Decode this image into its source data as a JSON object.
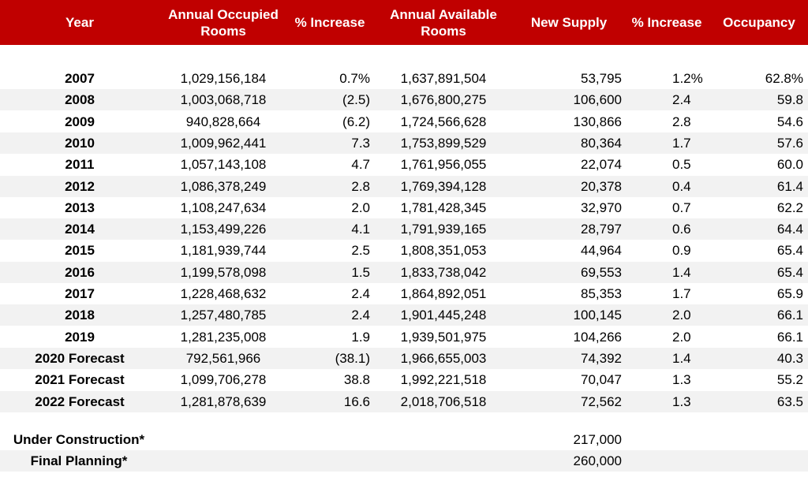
{
  "header": {
    "year": "Year",
    "annual_occupied": "Annual Occupied Rooms",
    "pct_increase_1": "% Increase",
    "annual_available": "Annual Available Rooms",
    "new_supply": "New Supply",
    "pct_increase_2": "% Increase",
    "occupancy": "Occupancy"
  },
  "rows": [
    {
      "year": "2007",
      "occupied": "1,029,156,184",
      "occ_pct": "0.7%",
      "available": "1,637,891,504",
      "supply": "53,795",
      "sup_pct": "1.2%",
      "occupancy": "62.8%"
    },
    {
      "year": "2008",
      "occupied": "1,003,068,718",
      "occ_pct": "(2.5)",
      "available": "1,676,800,275",
      "supply": "106,600",
      "sup_pct": "2.4",
      "occupancy": "59.8"
    },
    {
      "year": "2009",
      "occupied": "940,828,664",
      "occ_pct": "(6.2)",
      "available": "1,724,566,628",
      "supply": "130,866",
      "sup_pct": "2.8",
      "occupancy": "54.6"
    },
    {
      "year": "2010",
      "occupied": "1,009,962,441",
      "occ_pct": "7.3",
      "available": "1,753,899,529",
      "supply": "80,364",
      "sup_pct": "1.7",
      "occupancy": "57.6"
    },
    {
      "year": "2011",
      "occupied": "1,057,143,108",
      "occ_pct": "4.7",
      "available": "1,761,956,055",
      "supply": "22,074",
      "sup_pct": "0.5",
      "occupancy": "60.0"
    },
    {
      "year": "2012",
      "occupied": "1,086,378,249",
      "occ_pct": "2.8",
      "available": "1,769,394,128",
      "supply": "20,378",
      "sup_pct": "0.4",
      "occupancy": "61.4"
    },
    {
      "year": "2013",
      "occupied": "1,108,247,634",
      "occ_pct": "2.0",
      "available": "1,781,428,345",
      "supply": "32,970",
      "sup_pct": "0.7",
      "occupancy": "62.2"
    },
    {
      "year": "2014",
      "occupied": "1,153,499,226",
      "occ_pct": "4.1",
      "available": "1,791,939,165",
      "supply": "28,797",
      "sup_pct": "0.6",
      "occupancy": "64.4"
    },
    {
      "year": "2015",
      "occupied": "1,181,939,744",
      "occ_pct": "2.5",
      "available": "1,808,351,053",
      "supply": "44,964",
      "sup_pct": "0.9",
      "occupancy": "65.4"
    },
    {
      "year": "2016",
      "occupied": "1,199,578,098",
      "occ_pct": "1.5",
      "available": "1,833,738,042",
      "supply": "69,553",
      "sup_pct": "1.4",
      "occupancy": "65.4"
    },
    {
      "year": "2017",
      "occupied": "1,228,468,632",
      "occ_pct": "2.4",
      "available": "1,864,892,051",
      "supply": "85,353",
      "sup_pct": "1.7",
      "occupancy": "65.9"
    },
    {
      "year": "2018",
      "occupied": "1,257,480,785",
      "occ_pct": "2.4",
      "available": "1,901,445,248",
      "supply": "100,145",
      "sup_pct": "2.0",
      "occupancy": "66.1"
    },
    {
      "year": "2019",
      "occupied": "1,281,235,008",
      "occ_pct": "1.9",
      "available": "1,939,501,975",
      "supply": "104,266",
      "sup_pct": "2.0",
      "occupancy": "66.1"
    },
    {
      "year": "2020 Forecast",
      "occupied": "792,561,966",
      "occ_pct": "(38.1)",
      "available": "1,966,655,003",
      "supply": "74,392",
      "sup_pct": "1.4",
      "occupancy": "40.3"
    },
    {
      "year": "2021 Forecast",
      "occupied": "1,099,706,278",
      "occ_pct": "38.8",
      "available": "1,992,221,518",
      "supply": "70,047",
      "sup_pct": "1.3",
      "occupancy": "55.2"
    },
    {
      "year": "2022 Forecast",
      "occupied": "1,281,878,639",
      "occ_pct": "16.6",
      "available": "2,018,706,518",
      "supply": "72,562",
      "sup_pct": "1.3",
      "occupancy": "63.5"
    }
  ],
  "footer": [
    {
      "label": "Under Construction*",
      "supply": "217,000"
    },
    {
      "label": "Final Planning*",
      "supply": "260,000"
    }
  ],
  "colors": {
    "header_bg": "#c00000",
    "shade": "#f2f2f2"
  }
}
